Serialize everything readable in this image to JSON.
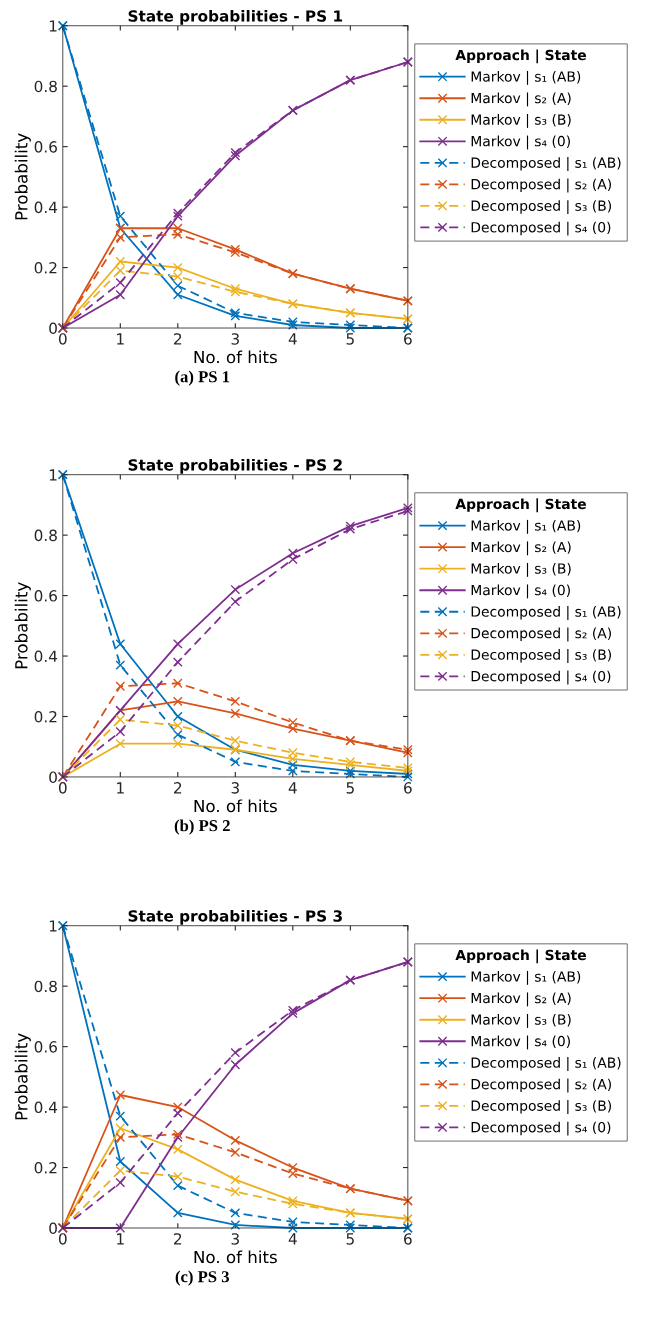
{
  "chart_data": [
    {
      "type": "line",
      "title": "State probabilities - PS 1",
      "xlabel": "No. of hits",
      "ylabel": "Probability",
      "x": [
        0,
        1,
        2,
        3,
        4,
        5,
        6
      ],
      "xlim": [
        0,
        6
      ],
      "ylim": [
        0,
        1
      ],
      "xticks": [
        0,
        1,
        2,
        3,
        4,
        5,
        6
      ],
      "yticks": [
        0,
        0.2,
        0.4,
        0.6,
        0.8,
        1
      ],
      "marker": "cross",
      "legend": "right",
      "legend_title": "Approach | State",
      "annotations": [
        "(a) PS 1"
      ],
      "series": [
        {
          "name": "Markov | s₁ (AB)",
          "color": "#0072bd",
          "line_style": "solid",
          "values": [
            1,
            0.33,
            0.11,
            0.04,
            0.01,
            0.0,
            0.0
          ]
        },
        {
          "name": "Markov | s₂ (A)",
          "color": "#d95319",
          "line_style": "solid",
          "values": [
            0,
            0.33,
            0.33,
            0.26,
            0.18,
            0.13,
            0.09
          ]
        },
        {
          "name": "Markov | s₃ (B)",
          "color": "#edb120",
          "line_style": "solid",
          "values": [
            0,
            0.22,
            0.2,
            0.13,
            0.08,
            0.05,
            0.03
          ]
        },
        {
          "name": "Markov | s₄ (0)",
          "color": "#7e2f8e",
          "line_style": "solid",
          "values": [
            0,
            0.11,
            0.37,
            0.57,
            0.72,
            0.82,
            0.88
          ]
        },
        {
          "name": "Decomposed | s₁ (AB)",
          "color": "#0072bd",
          "line_style": "dashed",
          "values": [
            1,
            0.37,
            0.14,
            0.05,
            0.02,
            0.01,
            0.0
          ]
        },
        {
          "name": "Decomposed | s₂ (A)",
          "color": "#d95319",
          "line_style": "dashed",
          "values": [
            0,
            0.3,
            0.31,
            0.25,
            0.18,
            0.13,
            0.09
          ]
        },
        {
          "name": "Decomposed | s₃ (B)",
          "color": "#edb120",
          "line_style": "dashed",
          "values": [
            0,
            0.19,
            0.17,
            0.12,
            0.08,
            0.05,
            0.03
          ]
        },
        {
          "name": "Decomposed | s₄ (0)",
          "color": "#7e2f8e",
          "line_style": "dashed",
          "values": [
            0,
            0.15,
            0.38,
            0.58,
            0.72,
            0.82,
            0.88
          ]
        }
      ]
    },
    {
      "type": "line",
      "title": "State probabilities - PS 2",
      "xlabel": "No. of hits",
      "ylabel": "Probability",
      "x": [
        0,
        1,
        2,
        3,
        4,
        5,
        6
      ],
      "xlim": [
        0,
        6
      ],
      "ylim": [
        0,
        1
      ],
      "xticks": [
        0,
        1,
        2,
        3,
        4,
        5,
        6
      ],
      "yticks": [
        0,
        0.2,
        0.4,
        0.6,
        0.8,
        1
      ],
      "marker": "cross",
      "legend": "right",
      "legend_title": "Approach | State",
      "annotations": [
        "(b) PS 2"
      ],
      "series": [
        {
          "name": "Markov | s₁ (AB)",
          "color": "#0072bd",
          "line_style": "solid",
          "values": [
            1,
            0.44,
            0.2,
            0.09,
            0.04,
            0.02,
            0.01
          ]
        },
        {
          "name": "Markov | s₂ (A)",
          "color": "#d95319",
          "line_style": "solid",
          "values": [
            0,
            0.22,
            0.25,
            0.21,
            0.16,
            0.12,
            0.08
          ]
        },
        {
          "name": "Markov | s₃ (B)",
          "color": "#edb120",
          "line_style": "solid",
          "values": [
            0,
            0.11,
            0.11,
            0.09,
            0.06,
            0.04,
            0.02
          ]
        },
        {
          "name": "Markov | s₄ (0)",
          "color": "#7e2f8e",
          "line_style": "solid",
          "values": [
            0,
            0.22,
            0.44,
            0.62,
            0.74,
            0.83,
            0.89
          ]
        },
        {
          "name": "Decomposed | s₁ (AB)",
          "color": "#0072bd",
          "line_style": "dashed",
          "values": [
            1,
            0.37,
            0.14,
            0.05,
            0.02,
            0.01,
            0.0
          ]
        },
        {
          "name": "Decomposed | s₂ (A)",
          "color": "#d95319",
          "line_style": "dashed",
          "values": [
            0,
            0.3,
            0.31,
            0.25,
            0.18,
            0.12,
            0.09
          ]
        },
        {
          "name": "Decomposed | s₃ (B)",
          "color": "#edb120",
          "line_style": "dashed",
          "values": [
            0,
            0.19,
            0.17,
            0.12,
            0.08,
            0.05,
            0.03
          ]
        },
        {
          "name": "Decomposed | s₄ (0)",
          "color": "#7e2f8e",
          "line_style": "dashed",
          "values": [
            0,
            0.15,
            0.38,
            0.58,
            0.72,
            0.82,
            0.88
          ]
        }
      ]
    },
    {
      "type": "line",
      "title": "State probabilities - PS 3",
      "xlabel": "No. of hits",
      "ylabel": "Probability",
      "x": [
        0,
        1,
        2,
        3,
        4,
        5,
        6
      ],
      "xlim": [
        0,
        6
      ],
      "ylim": [
        0,
        1
      ],
      "xticks": [
        0,
        1,
        2,
        3,
        4,
        5,
        6
      ],
      "yticks": [
        0,
        0.2,
        0.4,
        0.6,
        0.8,
        1
      ],
      "marker": "cross",
      "legend": "right",
      "legend_title": "Approach | State",
      "annotations": [
        "(c) PS 3"
      ],
      "series": [
        {
          "name": "Markov | s₁ (AB)",
          "color": "#0072bd",
          "line_style": "solid",
          "values": [
            1,
            0.22,
            0.05,
            0.01,
            0.0,
            0.0,
            0.0
          ]
        },
        {
          "name": "Markov | s₂ (A)",
          "color": "#d95319",
          "line_style": "solid",
          "values": [
            0,
            0.44,
            0.4,
            0.29,
            0.2,
            0.13,
            0.09
          ]
        },
        {
          "name": "Markov | s₃ (B)",
          "color": "#edb120",
          "line_style": "solid",
          "values": [
            0,
            0.33,
            0.26,
            0.16,
            0.09,
            0.05,
            0.03
          ]
        },
        {
          "name": "Markov | s₄ (0)",
          "color": "#7e2f8e",
          "line_style": "solid",
          "values": [
            0,
            0,
            0.3,
            0.54,
            0.71,
            0.82,
            0.88
          ]
        },
        {
          "name": "Decomposed | s₁ (AB)",
          "color": "#0072bd",
          "line_style": "dashed",
          "values": [
            1,
            0.37,
            0.14,
            0.05,
            0.02,
            0.01,
            0.0
          ]
        },
        {
          "name": "Decomposed | s₂ (A)",
          "color": "#d95319",
          "line_style": "dashed",
          "values": [
            0,
            0.3,
            0.31,
            0.25,
            0.18,
            0.13,
            0.09
          ]
        },
        {
          "name": "Decomposed | s₃ (B)",
          "color": "#edb120",
          "line_style": "dashed",
          "values": [
            0,
            0.19,
            0.17,
            0.12,
            0.08,
            0.05,
            0.03
          ]
        },
        {
          "name": "Decomposed | s₄ (0)",
          "color": "#7e2f8e",
          "line_style": "dashed",
          "values": [
            0,
            0.15,
            0.38,
            0.58,
            0.72,
            0.82,
            0.88
          ]
        }
      ]
    }
  ]
}
